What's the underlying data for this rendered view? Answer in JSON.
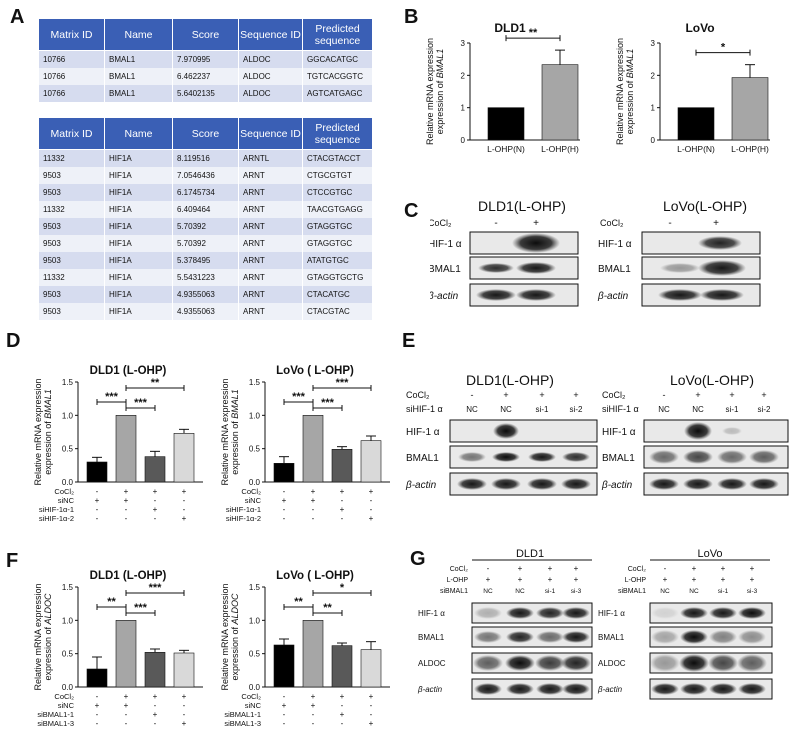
{
  "panels": {
    "a": "A",
    "b": "B",
    "c": "C",
    "d": "D",
    "e": "E",
    "f": "F",
    "g": "G"
  },
  "table1": {
    "headers": [
      "Matrix ID",
      "Name",
      "Score",
      "Sequence ID",
      "Predicted sequence"
    ],
    "rows": [
      [
        "10766",
        "BMAL1",
        "7.970995",
        "ALDOC",
        "GGCACATGC"
      ],
      [
        "10766",
        "BMAL1",
        "6.462237",
        "ALDOC",
        "TGTCACGGTC"
      ],
      [
        "10766",
        "BMAL1",
        "5.6402135",
        "ALDOC",
        "AGTCATGAGC"
      ]
    ]
  },
  "table2": {
    "headers": [
      "Matrix ID",
      "Name",
      "Score",
      "Sequence ID",
      "Predicted sequence"
    ],
    "rows": [
      [
        "11332",
        "HIF1A",
        "8.119516",
        "ARNTL",
        "CTACGTACCT"
      ],
      [
        "9503",
        "HIF1A",
        "7.0546436",
        "ARNT",
        "CTGCGTGT"
      ],
      [
        "9503",
        "HIF1A",
        "6.1745734",
        "ARNT",
        "CTCCGTGC"
      ],
      [
        "11332",
        "HIF1A",
        "6.409464",
        "ARNT",
        "TAACGTGAGG"
      ],
      [
        "9503",
        "HIF1A",
        "5.70392",
        "ARNT",
        "GTAGGTGC"
      ],
      [
        "9503",
        "HIF1A",
        "5.70392",
        "ARNT",
        "GTAGGTGC"
      ],
      [
        "9503",
        "HIF1A",
        "5.378495",
        "ARNT",
        "ATATGTGC"
      ],
      [
        "11332",
        "HIF1A",
        "5.5431223",
        "ARNT",
        "GTAGGTGCTG"
      ],
      [
        "9503",
        "HIF1A",
        "4.9355063",
        "ARNT",
        "CTACATGC"
      ],
      [
        "9503",
        "HIF1A",
        "4.9355063",
        "ARNT",
        "CTACGTAC"
      ]
    ]
  },
  "chart_data": [
    {
      "id": "B-DLD1",
      "type": "bar",
      "title": "DLD1",
      "ylabel": "Relative mRNA expression of BMAL1",
      "ylim": [
        0,
        3
      ],
      "yticks": [
        0,
        1,
        2,
        3
      ],
      "categories": [
        "L-OHP(N)",
        "L-OHP(H)"
      ],
      "values": [
        1.0,
        2.33
      ],
      "errors": [
        0,
        0.45
      ],
      "colors": [
        "#000000",
        "#a6a6a6"
      ],
      "sig": [
        {
          "from": 0,
          "to": 1,
          "label": "**"
        }
      ]
    },
    {
      "id": "B-LoVo",
      "type": "bar",
      "title": "LoVo",
      "ylabel": "Relative mRNA expression of BMAL1",
      "ylim": [
        0,
        3
      ],
      "yticks": [
        0,
        1,
        2,
        3
      ],
      "categories": [
        "L-OHP(N)",
        "L-OHP(H)"
      ],
      "values": [
        1.0,
        1.93
      ],
      "errors": [
        0,
        0.4
      ],
      "colors": [
        "#000000",
        "#a6a6a6"
      ],
      "sig": [
        {
          "from": 0,
          "to": 1,
          "label": "*"
        }
      ]
    },
    {
      "id": "D-DLD1",
      "type": "bar",
      "title": "DLD1  (L-OHP)",
      "ylabel": "Relative mRNA expression of BMAL1",
      "ylim": [
        0,
        1.5
      ],
      "yticks": [
        0.0,
        0.5,
        1.0,
        1.5
      ],
      "categories": [
        "1",
        "2",
        "3",
        "4"
      ],
      "values": [
        0.3,
        1.0,
        0.38,
        0.73
      ],
      "errors": [
        0.07,
        0,
        0.08,
        0.06
      ],
      "colors": [
        "#000000",
        "#a6a6a6",
        "#595959",
        "#d9d9d9"
      ],
      "sig": [
        {
          "from": 0,
          "to": 1,
          "label": "***"
        },
        {
          "from": 1,
          "to": 2,
          "label": "***"
        },
        {
          "from": 1,
          "to": 3,
          "label": "**"
        }
      ],
      "grid_rows": [
        {
          "label": "CoCl₂",
          "marks": [
            "-",
            "+",
            "+",
            "+"
          ]
        },
        {
          "label": "siNC",
          "marks": [
            "+",
            "+",
            "-",
            "-"
          ]
        },
        {
          "label": "siHIF-1α-1",
          "marks": [
            "-",
            "-",
            "+",
            "-"
          ]
        },
        {
          "label": "siHIF-1α-2",
          "marks": [
            "-",
            "-",
            "-",
            "+"
          ]
        }
      ]
    },
    {
      "id": "D-LoVo",
      "type": "bar",
      "title": "LoVo  ( L-OHP)",
      "ylabel": "Relative mRNA expression of BMAL1",
      "ylim": [
        0,
        1.5
      ],
      "yticks": [
        0.0,
        0.5,
        1.0,
        1.5
      ],
      "categories": [
        "1",
        "2",
        "3",
        "4"
      ],
      "values": [
        0.28,
        1.0,
        0.49,
        0.62
      ],
      "errors": [
        0.1,
        0,
        0.04,
        0.07
      ],
      "colors": [
        "#000000",
        "#a6a6a6",
        "#595959",
        "#d9d9d9"
      ],
      "sig": [
        {
          "from": 0,
          "to": 1,
          "label": "***"
        },
        {
          "from": 1,
          "to": 2,
          "label": "***"
        },
        {
          "from": 1,
          "to": 3,
          "label": "***"
        }
      ],
      "grid_rows": [
        {
          "label": "CoCl₂",
          "marks": [
            "-",
            "+",
            "+",
            "+"
          ]
        },
        {
          "label": "siNC",
          "marks": [
            "+",
            "+",
            "-",
            "-"
          ]
        },
        {
          "label": "siHIF-1α-1",
          "marks": [
            "-",
            "-",
            "+",
            "-"
          ]
        },
        {
          "label": "siHIF-1α-2",
          "marks": [
            "-",
            "-",
            "-",
            "+"
          ]
        }
      ]
    },
    {
      "id": "F-DLD1",
      "type": "bar",
      "title": "DLD1  (L-OHP)",
      "ylabel": "Relative mRNA expression of ALDOC",
      "ylim": [
        0,
        1.5
      ],
      "yticks": [
        0.0,
        0.5,
        1.0,
        1.5
      ],
      "categories": [
        "1",
        "2",
        "3",
        "4"
      ],
      "values": [
        0.27,
        1.0,
        0.52,
        0.51
      ],
      "errors": [
        0.18,
        0,
        0.05,
        0.04
      ],
      "colors": [
        "#000000",
        "#a6a6a6",
        "#595959",
        "#d9d9d9"
      ],
      "sig": [
        {
          "from": 0,
          "to": 1,
          "label": "**"
        },
        {
          "from": 1,
          "to": 2,
          "label": "***"
        },
        {
          "from": 1,
          "to": 3,
          "label": "***"
        }
      ],
      "grid_rows": [
        {
          "label": "CoCl₂",
          "marks": [
            "-",
            "+",
            "+",
            "+"
          ]
        },
        {
          "label": "siNC",
          "marks": [
            "+",
            "+",
            "-",
            "-"
          ]
        },
        {
          "label": "siBMAL1-1",
          "marks": [
            "-",
            "-",
            "+",
            "-"
          ]
        },
        {
          "label": "siBMAL1-3",
          "marks": [
            "-",
            "-",
            "-",
            "+"
          ]
        }
      ]
    },
    {
      "id": "F-LoVo",
      "type": "bar",
      "title": "LoVo  ( L-OHP)",
      "ylabel": "Relative mRNA expression of ALDOC",
      "ylim": [
        0,
        1.5
      ],
      "yticks": [
        0.0,
        0.5,
        1.0,
        1.5
      ],
      "categories": [
        "1",
        "2",
        "3",
        "4"
      ],
      "values": [
        0.63,
        1.0,
        0.62,
        0.56
      ],
      "errors": [
        0.09,
        0,
        0.04,
        0.12
      ],
      "colors": [
        "#000000",
        "#a6a6a6",
        "#595959",
        "#d9d9d9"
      ],
      "sig": [
        {
          "from": 0,
          "to": 1,
          "label": "**"
        },
        {
          "from": 1,
          "to": 2,
          "label": "**"
        },
        {
          "from": 1,
          "to": 3,
          "label": "*"
        }
      ],
      "grid_rows": [
        {
          "label": "CoCl₂",
          "marks": [
            "-",
            "+",
            "+",
            "+"
          ]
        },
        {
          "label": "siNC",
          "marks": [
            "+",
            "+",
            "-",
            "-"
          ]
        },
        {
          "label": "siBMAL1-1",
          "marks": [
            "-",
            "-",
            "+",
            "-"
          ]
        },
        {
          "label": "siBMAL1-3",
          "marks": [
            "-",
            "-",
            "-",
            "+"
          ]
        }
      ]
    }
  ],
  "blots": {
    "c": {
      "left": {
        "title": "DLD1(L-OHP)",
        "cond_label": "CoCl₂",
        "marks": [
          "-",
          "+"
        ],
        "rows": [
          "HIF-1 α",
          "BMAL1",
          "β-actin"
        ]
      },
      "right": {
        "title": "LoVo(L-OHP)",
        "cond_label": "CoCl₂",
        "marks": [
          "-",
          "+"
        ],
        "rows": [
          "HIF-1 α",
          "BMAL1",
          "β-actin"
        ]
      }
    },
    "e": {
      "left": {
        "title": "DLD1(L-OHP)",
        "cond1_label": "CoCl₂",
        "cond1": [
          "-",
          "+",
          "+",
          "+"
        ],
        "cond2_label": "siHIF-1 α",
        "cond2": [
          "NC",
          "NC",
          "si-1",
          "si-2"
        ],
        "rows": [
          "HIF-1 α",
          "BMAL1",
          "β-actin"
        ]
      },
      "right": {
        "title": "LoVo(L-OHP)",
        "cond1_label": "CoCl₂",
        "cond1": [
          "-",
          "+",
          "+",
          "+"
        ],
        "cond2_label": "siHIF-1 α",
        "cond2": [
          "NC",
          "NC",
          "si-1",
          "si-2"
        ],
        "rows": [
          "HIF-1 α",
          "BMAL1",
          "β-actin"
        ]
      }
    },
    "g": {
      "left": {
        "title": "DLD1",
        "c1": "CoCl₂",
        "m1": [
          "-",
          "+",
          "+",
          "+"
        ],
        "c2": "L-OHP",
        "m2": [
          "+",
          "+",
          "+",
          "+"
        ],
        "c3": "siBMAL1",
        "m3": [
          "NC",
          "NC",
          "si-1",
          "si-3"
        ],
        "rows": [
          "HIF-1 α",
          "BMAL1",
          "ALDOC",
          "β-actin"
        ]
      },
      "right": {
        "title": "LoVo",
        "c1": "CoCl₂",
        "m1": [
          "-",
          "+",
          "+",
          "+"
        ],
        "c2": "L-OHP",
        "m2": [
          "+",
          "+",
          "+",
          "+"
        ],
        "c3": "siBMAL1",
        "m3": [
          "NC",
          "NC",
          "si-1",
          "si-3"
        ],
        "rows": [
          "HIF-1 α",
          "BMAL1",
          "ALDOC",
          "β-actin"
        ]
      }
    }
  }
}
